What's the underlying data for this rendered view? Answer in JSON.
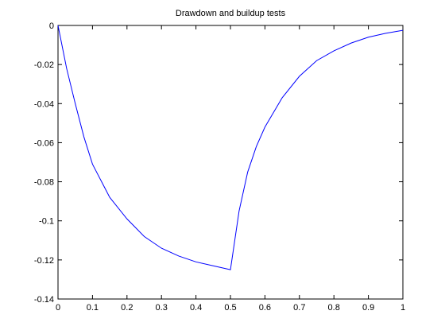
{
  "chart_data": {
    "type": "line",
    "title": "Drawdown and buildup tests",
    "x": [
      0,
      0.025,
      0.05,
      0.075,
      0.1,
      0.15,
      0.2,
      0.25,
      0.3,
      0.35,
      0.4,
      0.45,
      0.5,
      0.525,
      0.55,
      0.575,
      0.6,
      0.65,
      0.7,
      0.75,
      0.8,
      0.85,
      0.9,
      0.95,
      1
    ],
    "series": [
      {
        "color": "#0000ff",
        "values": [
          0,
          -0.022,
          -0.04,
          -0.057,
          -0.071,
          -0.088,
          -0.099,
          -0.108,
          -0.114,
          -0.118,
          -0.121,
          -0.123,
          -0.125,
          -0.095,
          -0.075,
          -0.062,
          -0.052,
          -0.037,
          -0.026,
          -0.018,
          -0.013,
          -0.009,
          -0.006,
          -0.004,
          -0.0025
        ]
      }
    ],
    "xlim": [
      0,
      1
    ],
    "xticks": [
      0,
      0.1,
      0.2,
      0.3,
      0.4,
      0.5,
      0.6,
      0.7,
      0.8,
      0.9,
      1
    ],
    "ylim": [
      -0.14,
      0
    ],
    "yticks": [
      -0.14,
      -0.12,
      -0.1,
      -0.08,
      -0.06,
      -0.04,
      -0.02,
      0
    ]
  }
}
